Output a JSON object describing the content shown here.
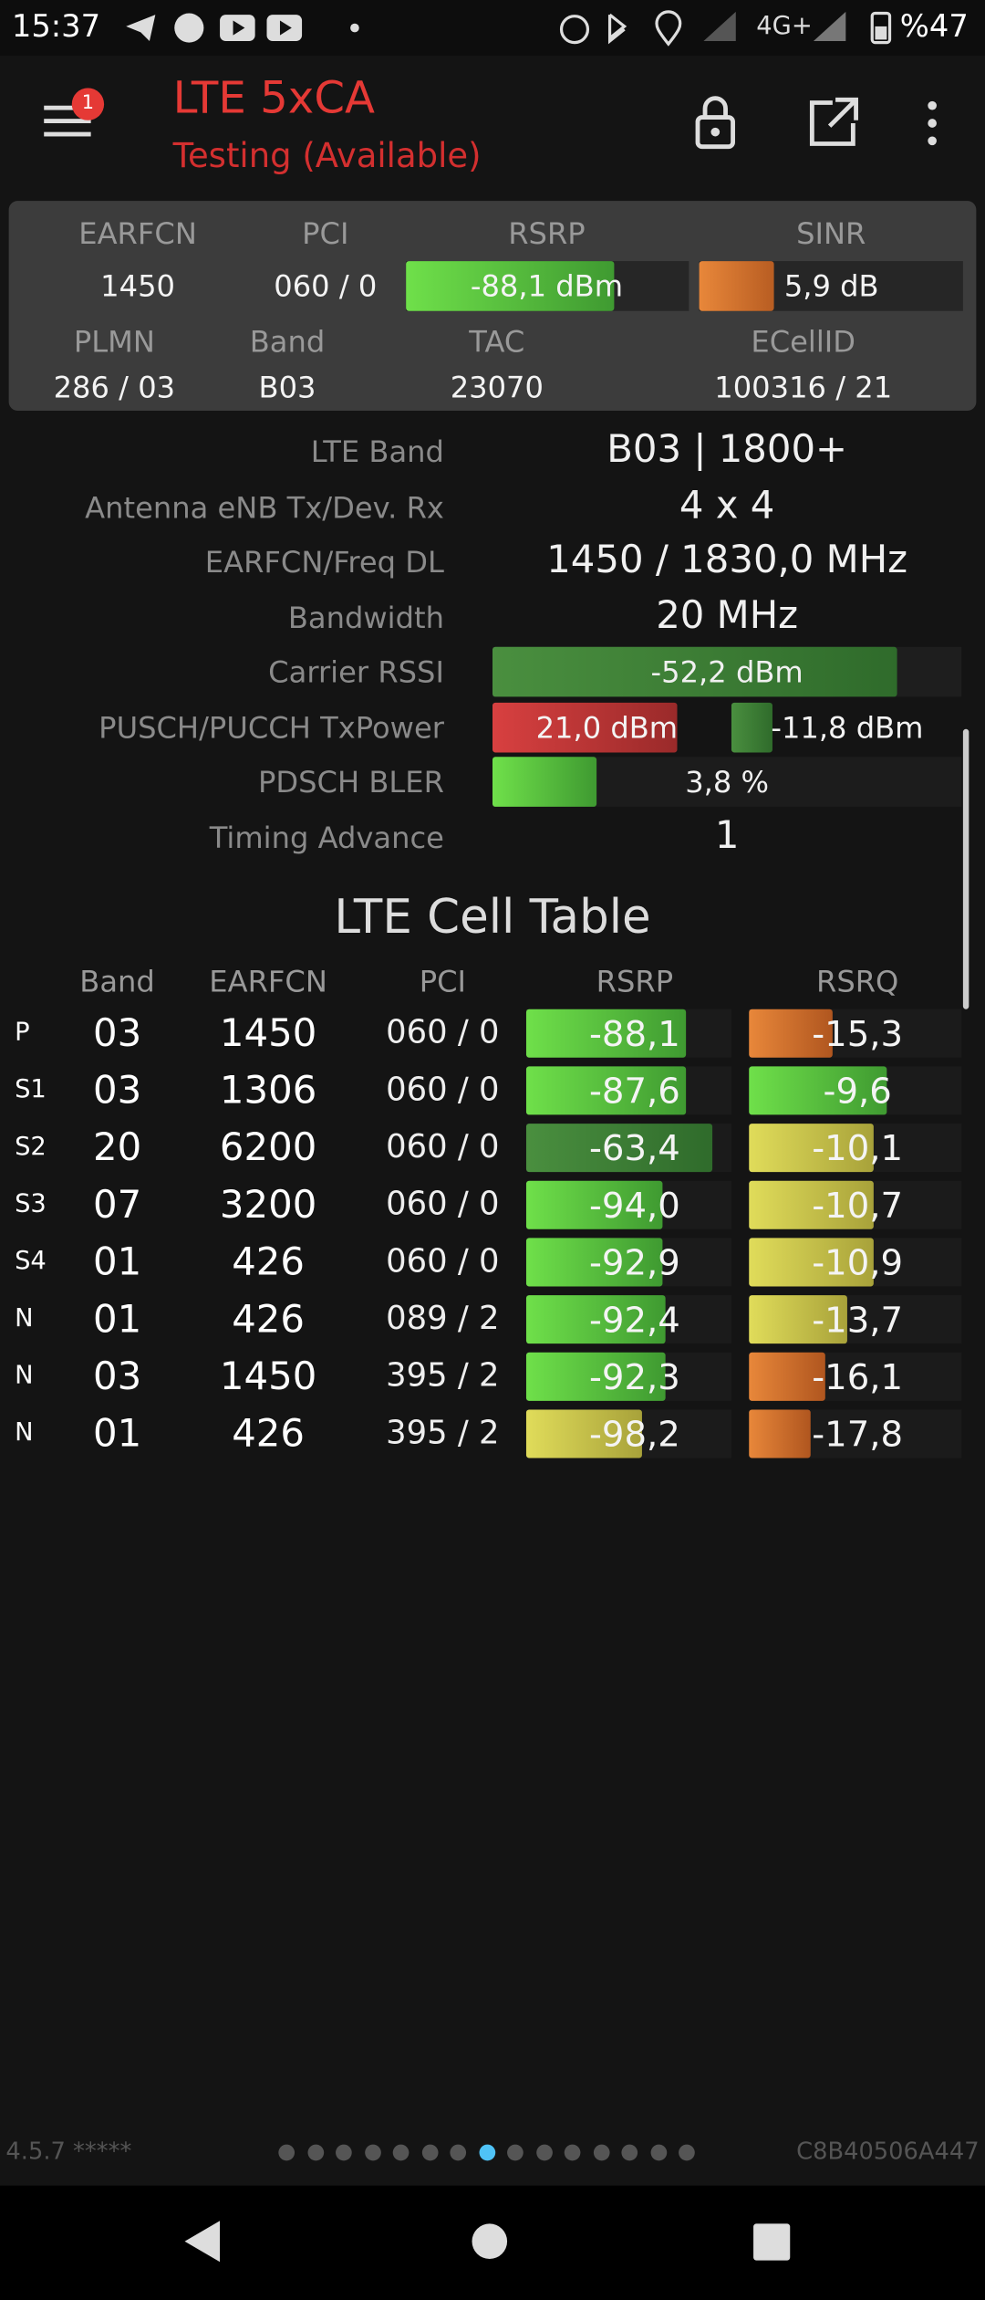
{
  "status_bar": {
    "time": "15:37",
    "network": "4G+",
    "battery": "%47"
  },
  "header": {
    "title": "LTE 5xCA",
    "subtitle": "Testing (Available)",
    "badge": "1"
  },
  "summary": {
    "labels_top": [
      "EARFCN",
      "PCI",
      "RSRP",
      "SINR"
    ],
    "values_top": [
      "1450",
      "060 / 0",
      "-88,1 dBm",
      "5,9 dB"
    ],
    "labels_bottom": [
      "PLMN",
      "Band",
      "TAC",
      "ECellID"
    ],
    "values_bottom": [
      "286 / 03",
      "B03",
      "23070",
      "100316 / 21"
    ]
  },
  "details": [
    {
      "label": "LTE Band",
      "value": "B03 | 1800+"
    },
    {
      "label": "Antenna eNB Tx/Dev. Rx",
      "value": "4 x 4"
    },
    {
      "label": "EARFCN/Freq DL",
      "value": "1450 / 1830,0 MHz"
    },
    {
      "label": "Bandwidth",
      "value": "20 MHz"
    },
    {
      "label": "Carrier RSSI",
      "value": "-52,2 dBm"
    },
    {
      "label": "PUSCH/PUCCH TxPower",
      "value": "21,0 dBm",
      "value2": "-11,8 dBm"
    },
    {
      "label": "PDSCH BLER",
      "value": "3,8 %"
    },
    {
      "label": "Timing Advance",
      "value": "1"
    }
  ],
  "cell_table": {
    "title": "LTE Cell Table",
    "headers": [
      "Band",
      "EARFCN",
      "PCI",
      "RSRP",
      "RSRQ"
    ],
    "rows": [
      [
        "P",
        "03",
        "1450",
        "060 / 0",
        "-88,1",
        "-15,3"
      ],
      [
        "S1",
        "03",
        "1306",
        "060 / 0",
        "-87,6",
        "-9,6"
      ],
      [
        "S2",
        "20",
        "6200",
        "060 / 0",
        "-63,4",
        "-10,1"
      ],
      [
        "S3",
        "07",
        "3200",
        "060 / 0",
        "-94,0",
        "-10,7"
      ],
      [
        "S4",
        "01",
        "426",
        "060 / 0",
        "-92,9",
        "-10,9"
      ],
      [
        "N",
        "01",
        "426",
        "089 / 2",
        "-92,4",
        "-13,7"
      ],
      [
        "N",
        "03",
        "1450",
        "395 / 2",
        "-92,3",
        "-16,1"
      ],
      [
        "N",
        "01",
        "426",
        "395 / 2",
        "-98,2",
        "-17,8"
      ]
    ]
  },
  "footer": {
    "version": "4.5.7 *****",
    "device_id": "C8B40506A447"
  }
}
